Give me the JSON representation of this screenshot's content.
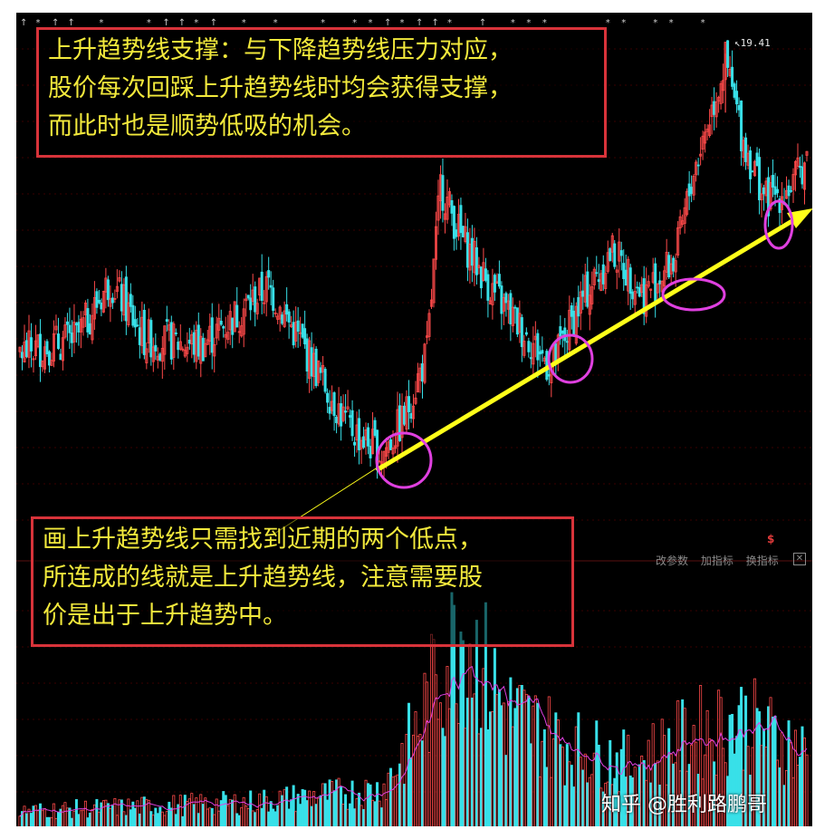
{
  "annotations": {
    "top_box": {
      "lines": [
        "上升趋势线支撑：与下降趋势线压力对应，",
        "股价每次回踩上升趋势线时均会获得支撑，",
        "而此时也是顺势低吸的机会。"
      ]
    },
    "bottom_box": {
      "lines": [
        "画上升趋势线只需找到近期的两个低点，",
        "所连成的线就是上升趋势线，注意需要股",
        "价是出于上升趋势中。"
      ]
    }
  },
  "toolbar": {
    "items": [
      "改参数",
      "加指标",
      "换指标"
    ],
    "close": "✕"
  },
  "marker": {
    "dollar": "$"
  },
  "watermark": "知乎 @胜利路鹏哥",
  "colors": {
    "up": "#ff4a4a",
    "down": "#38e0e8",
    "trendline": "#ffff1a",
    "circle": "#e040e0",
    "ma": "#e040e0",
    "note_border": "#d8333a",
    "note_text": "#f2e93c"
  },
  "chart_data": {
    "type": "candlestick",
    "high_label": "19.41",
    "high_value": 19.41,
    "price_key_points": [
      {
        "bar": 0,
        "close": 15.3
      },
      {
        "bar": 25,
        "close": 15.5
      },
      {
        "bar": 40,
        "close": 16.3
      },
      {
        "bar": 55,
        "close": 15.5
      },
      {
        "bar": 80,
        "close": 15.4
      },
      {
        "bar": 110,
        "close": 16.2
      },
      {
        "bar": 125,
        "close": 15.4
      },
      {
        "bar": 145,
        "close": 14.3
      },
      {
        "bar": 160,
        "close": 13.9
      },
      {
        "bar": 170,
        "close": 14.4
      },
      {
        "bar": 180,
        "close": 15.3
      },
      {
        "bar": 186,
        "close": 17.6
      },
      {
        "bar": 195,
        "close": 16.9
      },
      {
        "bar": 210,
        "close": 16.1
      },
      {
        "bar": 225,
        "close": 15.5
      },
      {
        "bar": 235,
        "close": 15.1
      },
      {
        "bar": 248,
        "close": 16.0
      },
      {
        "bar": 262,
        "close": 16.7
      },
      {
        "bar": 276,
        "close": 16.1
      },
      {
        "bar": 290,
        "close": 16.6
      },
      {
        "bar": 298,
        "close": 17.8
      },
      {
        "bar": 312,
        "close": 19.3
      },
      {
        "bar": 320,
        "close": 18.2
      },
      {
        "bar": 330,
        "close": 17.4
      },
      {
        "bar": 342,
        "close": 17.6
      },
      {
        "bar": 348,
        "close": 18.0
      }
    ],
    "volume_key_points": [
      {
        "bar": 0,
        "vol": 0.08
      },
      {
        "bar": 100,
        "vol": 0.12
      },
      {
        "bar": 160,
        "vol": 0.18
      },
      {
        "bar": 175,
        "vol": 0.45
      },
      {
        "bar": 195,
        "vol": 0.95
      },
      {
        "bar": 215,
        "vol": 0.55
      },
      {
        "bar": 240,
        "vol": 0.4
      },
      {
        "bar": 270,
        "vol": 0.3
      },
      {
        "bar": 300,
        "vol": 0.45
      },
      {
        "bar": 320,
        "vol": 0.5
      },
      {
        "bar": 348,
        "vol": 0.35
      }
    ],
    "trendline_touches": [
      160,
      240,
      286,
      336
    ]
  }
}
